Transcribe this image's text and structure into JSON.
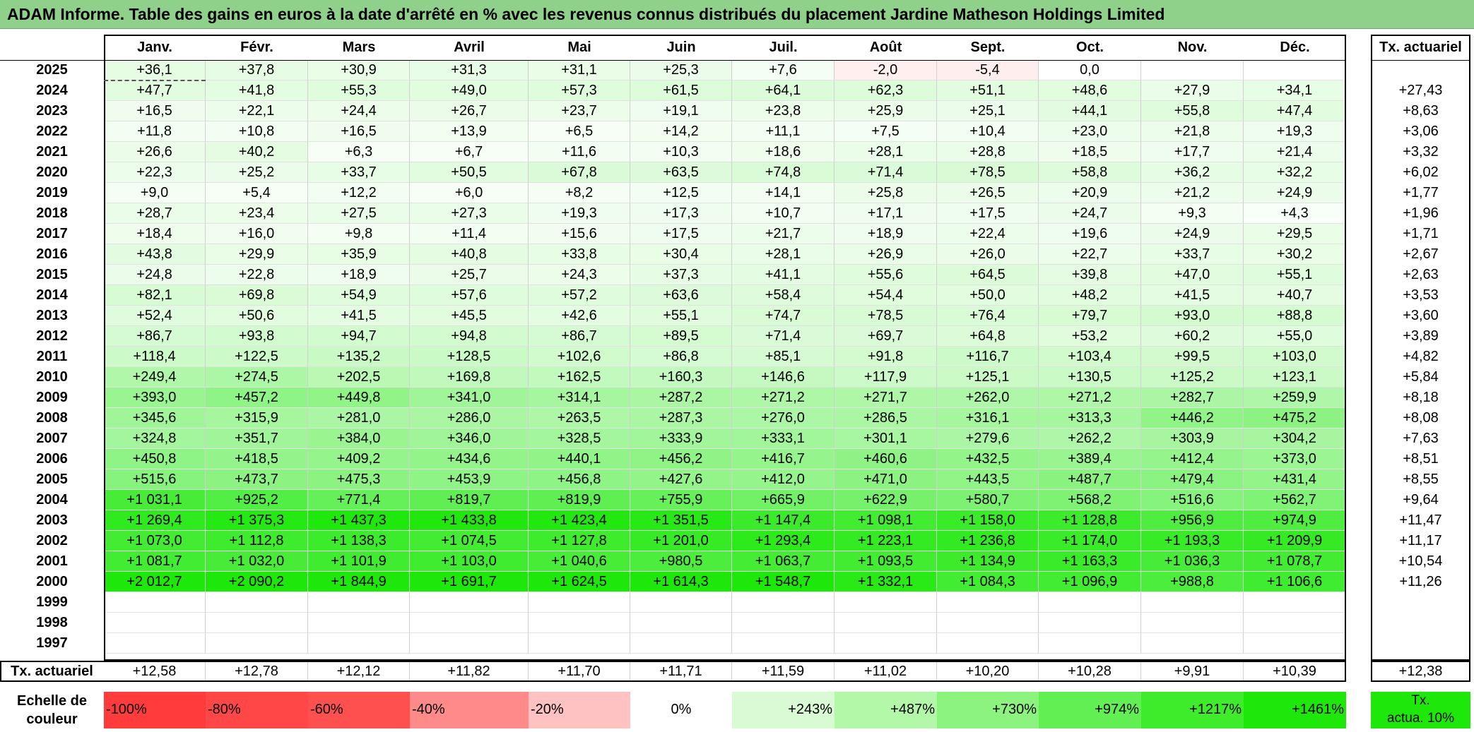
{
  "title": "ADAM Informe. Table des gains en euros à la date d'arrêté en % avec les revenus connus distribués du placement Jardine Matheson Holdings Limited",
  "months": [
    "Janv.",
    "Févr.",
    "Mars",
    "Avril",
    "Mai",
    "Juin",
    "Juil.",
    "Août",
    "Sept.",
    "Oct.",
    "Nov.",
    "Déc."
  ],
  "actuarial_header": "Tx. actuariel",
  "rows": [
    {
      "year": "2025",
      "values": [
        "+36,1",
        "+37,8",
        "+30,9",
        "+31,3",
        "+31,1",
        "+25,3",
        "+7,6",
        "-2,0",
        "-5,4",
        "0,0",
        "",
        ""
      ],
      "rate": ""
    },
    {
      "year": "2024",
      "values": [
        "+47,7",
        "+41,8",
        "+55,3",
        "+49,0",
        "+57,3",
        "+61,5",
        "+64,1",
        "+62,3",
        "+51,1",
        "+48,6",
        "+27,9",
        "+34,1"
      ],
      "rate": "+27,43"
    },
    {
      "year": "2023",
      "values": [
        "+16,5",
        "+22,1",
        "+24,4",
        "+26,7",
        "+23,7",
        "+19,1",
        "+23,8",
        "+25,9",
        "+25,1",
        "+44,1",
        "+55,8",
        "+47,4"
      ],
      "rate": "+8,63"
    },
    {
      "year": "2022",
      "values": [
        "+11,8",
        "+10,8",
        "+16,5",
        "+13,9",
        "+6,5",
        "+14,2",
        "+11,1",
        "+7,5",
        "+10,4",
        "+23,0",
        "+21,8",
        "+19,3"
      ],
      "rate": "+3,06"
    },
    {
      "year": "2021",
      "values": [
        "+26,6",
        "+40,2",
        "+6,3",
        "+6,7",
        "+11,6",
        "+10,3",
        "+18,6",
        "+28,1",
        "+28,8",
        "+18,5",
        "+17,7",
        "+21,4"
      ],
      "rate": "+3,32"
    },
    {
      "year": "2020",
      "values": [
        "+22,3",
        "+25,2",
        "+33,7",
        "+50,5",
        "+67,8",
        "+63,5",
        "+74,8",
        "+71,4",
        "+78,5",
        "+58,8",
        "+36,2",
        "+32,2"
      ],
      "rate": "+6,02"
    },
    {
      "year": "2019",
      "values": [
        "+9,0",
        "+5,4",
        "+12,2",
        "+6,0",
        "+8,2",
        "+12,5",
        "+14,1",
        "+25,8",
        "+26,5",
        "+20,9",
        "+21,2",
        "+24,9"
      ],
      "rate": "+1,77"
    },
    {
      "year": "2018",
      "values": [
        "+28,7",
        "+23,4",
        "+27,5",
        "+27,3",
        "+19,3",
        "+17,3",
        "+10,7",
        "+17,1",
        "+17,5",
        "+24,7",
        "+9,3",
        "+4,3"
      ],
      "rate": "+1,96"
    },
    {
      "year": "2017",
      "values": [
        "+18,4",
        "+16,0",
        "+9,8",
        "+11,4",
        "+15,6",
        "+17,5",
        "+21,7",
        "+18,9",
        "+22,4",
        "+19,6",
        "+24,9",
        "+29,5"
      ],
      "rate": "+1,71"
    },
    {
      "year": "2016",
      "values": [
        "+43,8",
        "+29,9",
        "+35,9",
        "+40,8",
        "+33,8",
        "+30,4",
        "+28,1",
        "+26,9",
        "+26,0",
        "+22,7",
        "+33,7",
        "+30,2"
      ],
      "rate": "+2,67"
    },
    {
      "year": "2015",
      "values": [
        "+24,8",
        "+22,8",
        "+18,9",
        "+25,7",
        "+24,3",
        "+37,3",
        "+41,1",
        "+55,6",
        "+64,5",
        "+39,8",
        "+47,0",
        "+55,1"
      ],
      "rate": "+2,63"
    },
    {
      "year": "2014",
      "values": [
        "+82,1",
        "+69,8",
        "+54,9",
        "+57,6",
        "+57,2",
        "+63,6",
        "+58,4",
        "+54,4",
        "+50,0",
        "+48,2",
        "+41,5",
        "+40,7"
      ],
      "rate": "+3,53"
    },
    {
      "year": "2013",
      "values": [
        "+52,4",
        "+50,6",
        "+41,5",
        "+45,5",
        "+42,6",
        "+55,1",
        "+74,7",
        "+78,5",
        "+76,4",
        "+79,7",
        "+93,0",
        "+88,8"
      ],
      "rate": "+3,60"
    },
    {
      "year": "2012",
      "values": [
        "+86,7",
        "+93,8",
        "+94,7",
        "+94,8",
        "+86,7",
        "+89,5",
        "+71,4",
        "+69,7",
        "+64,8",
        "+53,2",
        "+60,2",
        "+55,0"
      ],
      "rate": "+3,89"
    },
    {
      "year": "2011",
      "values": [
        "+118,4",
        "+122,5",
        "+135,2",
        "+128,5",
        "+102,6",
        "+86,8",
        "+85,1",
        "+91,8",
        "+116,7",
        "+103,4",
        "+99,5",
        "+103,0"
      ],
      "rate": "+4,82"
    },
    {
      "year": "2010",
      "values": [
        "+249,4",
        "+274,5",
        "+202,5",
        "+169,8",
        "+162,5",
        "+160,3",
        "+146,6",
        "+117,9",
        "+125,1",
        "+130,5",
        "+125,2",
        "+123,1"
      ],
      "rate": "+5,84"
    },
    {
      "year": "2009",
      "values": [
        "+393,0",
        "+457,2",
        "+449,8",
        "+341,0",
        "+314,1",
        "+287,2",
        "+271,2",
        "+271,7",
        "+262,0",
        "+271,2",
        "+282,7",
        "+259,9"
      ],
      "rate": "+8,18"
    },
    {
      "year": "2008",
      "values": [
        "+345,6",
        "+315,9",
        "+281,0",
        "+286,0",
        "+263,5",
        "+287,3",
        "+276,0",
        "+286,5",
        "+316,1",
        "+313,3",
        "+446,2",
        "+475,2"
      ],
      "rate": "+8,08"
    },
    {
      "year": "2007",
      "values": [
        "+324,8",
        "+351,7",
        "+384,0",
        "+346,0",
        "+328,5",
        "+333,9",
        "+333,1",
        "+301,1",
        "+279,6",
        "+262,2",
        "+303,9",
        "+304,2"
      ],
      "rate": "+7,63"
    },
    {
      "year": "2006",
      "values": [
        "+450,8",
        "+418,5",
        "+409,2",
        "+434,6",
        "+440,1",
        "+456,2",
        "+416,7",
        "+460,6",
        "+432,5",
        "+389,4",
        "+412,4",
        "+373,0"
      ],
      "rate": "+8,51"
    },
    {
      "year": "2005",
      "values": [
        "+515,6",
        "+473,7",
        "+475,3",
        "+453,9",
        "+456,8",
        "+427,6",
        "+412,0",
        "+471,0",
        "+443,5",
        "+487,7",
        "+479,4",
        "+431,4"
      ],
      "rate": "+8,55"
    },
    {
      "year": "2004",
      "values": [
        "+1 031,1",
        "+925,2",
        "+771,4",
        "+819,7",
        "+819,9",
        "+755,9",
        "+665,9",
        "+622,9",
        "+580,7",
        "+568,2",
        "+516,6",
        "+562,7"
      ],
      "rate": "+9,64"
    },
    {
      "year": "2003",
      "values": [
        "+1 269,4",
        "+1 375,3",
        "+1 437,3",
        "+1 433,8",
        "+1 423,4",
        "+1 351,5",
        "+1 147,4",
        "+1 098,1",
        "+1 158,0",
        "+1 128,8",
        "+956,9",
        "+974,9"
      ],
      "rate": "+11,47"
    },
    {
      "year": "2002",
      "values": [
        "+1 073,0",
        "+1 112,8",
        "+1 138,3",
        "+1 074,5",
        "+1 127,8",
        "+1 201,0",
        "+1 293,4",
        "+1 223,1",
        "+1 236,8",
        "+1 174,0",
        "+1 193,3",
        "+1 209,9"
      ],
      "rate": "+11,17"
    },
    {
      "year": "2001",
      "values": [
        "+1 081,7",
        "+1 032,0",
        "+1 101,9",
        "+1 103,0",
        "+1 040,6",
        "+980,5",
        "+1 063,7",
        "+1 093,5",
        "+1 134,9",
        "+1 163,3",
        "+1 036,3",
        "+1 078,7"
      ],
      "rate": "+10,54"
    },
    {
      "year": "2000",
      "values": [
        "+2 012,7",
        "+2 090,2",
        "+1 844,9",
        "+1 691,7",
        "+1 624,5",
        "+1 614,3",
        "+1 548,7",
        "+1 332,1",
        "+1 084,3",
        "+1 096,9",
        "+988,8",
        "+1 106,6"
      ],
      "rate": "+11,26"
    },
    {
      "year": "1999",
      "values": [
        "",
        "",
        "",
        "",
        "",
        "",
        "",
        "",
        "",
        "",
        "",
        ""
      ],
      "rate": ""
    },
    {
      "year": "1998",
      "values": [
        "",
        "",
        "",
        "",
        "",
        "",
        "",
        "",
        "",
        "",
        "",
        ""
      ],
      "rate": ""
    },
    {
      "year": "1997",
      "values": [
        "",
        "",
        "",
        "",
        "",
        "",
        "",
        "",
        "",
        "",
        "",
        ""
      ],
      "rate": ""
    }
  ],
  "footer": {
    "label": "Tx. actuariel",
    "values": [
      "+12,58",
      "+12,78",
      "+12,12",
      "+11,82",
      "+11,70",
      "+11,71",
      "+11,59",
      "+11,02",
      "+10,20",
      "+10,28",
      "+9,91",
      "+10,39"
    ],
    "total": "+12,38"
  },
  "scale": {
    "label_line1": "Echelle de",
    "label_line2": "couleur",
    "items": [
      {
        "text": "-100%",
        "color": "#ff3b3b",
        "align": "left"
      },
      {
        "text": "-80%",
        "color": "#ff4747",
        "align": "left"
      },
      {
        "text": "-60%",
        "color": "#ff5050",
        "align": "left"
      },
      {
        "text": "-40%",
        "color": "#ff8a8a",
        "align": "left"
      },
      {
        "text": "-20%",
        "color": "#ffc2c2",
        "align": "left"
      },
      {
        "text": "0%",
        "color": "#ffffff",
        "align": "center"
      },
      {
        "text": "+243%",
        "color": "#d9fbd4",
        "align": "right"
      },
      {
        "text": "+487%",
        "color": "#b3f7a9",
        "align": "right"
      },
      {
        "text": "+730%",
        "color": "#8cf47e",
        "align": "right"
      },
      {
        "text": "+974%",
        "color": "#62ef53",
        "align": "right"
      },
      {
        "text": "+1217%",
        "color": "#3fec2c",
        "align": "right"
      },
      {
        "text": "+1461%",
        "color": "#1de80a",
        "align": "right"
      }
    ],
    "badge_line1": "Tx.",
    "badge_line2": "actua. 10%",
    "badge_color": "#1de80a"
  },
  "colors": {
    "header_green": "#8fd18a",
    "positive_max": "#1de80a",
    "negative": "#ff3b3b"
  }
}
